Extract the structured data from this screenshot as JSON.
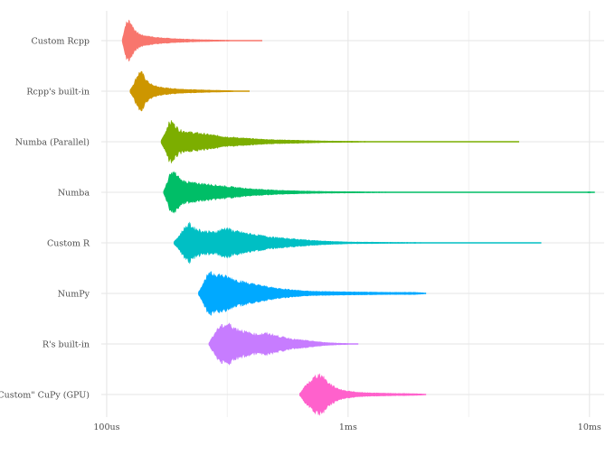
{
  "chart_data": {
    "type": "violin",
    "xscale": "log",
    "xlim_seconds": [
      9.5e-05,
      0.0115
    ],
    "x_ticks": [
      {
        "value": 0.0001,
        "label": "100us"
      },
      {
        "value": 0.001,
        "label": "1ms"
      },
      {
        "value": 0.01,
        "label": "10ms"
      }
    ],
    "x_minor_ticks": [
      0.000316,
      0.00316
    ],
    "grid": true,
    "legend": "none",
    "categories": [
      "Custom Rcpp",
      "Rcpp's built-in",
      "Numba (Parallel)",
      "Numba",
      "Custom R",
      "NumPy",
      "R's built-in",
      "\"Custom\" CuPy (GPU)"
    ],
    "series": [
      {
        "label": "Custom Rcpp",
        "color": "#F8766D",
        "min": 0.000116,
        "mode": 0.000122,
        "max": 0.00044,
        "max_width": 0.8,
        "profile": [
          [
            0.000116,
            0.05
          ],
          [
            0.000118,
            0.45
          ],
          [
            0.00012,
            0.8
          ],
          [
            0.000124,
            0.95
          ],
          [
            0.000128,
            0.7
          ],
          [
            0.000132,
            0.42
          ],
          [
            0.00014,
            0.26
          ],
          [
            0.00015,
            0.2
          ],
          [
            0.000165,
            0.14
          ],
          [
            0.00018,
            0.11
          ],
          [
            0.0002,
            0.08
          ],
          [
            0.00024,
            0.05
          ],
          [
            0.0003,
            0.025
          ],
          [
            0.00037,
            0.012
          ],
          [
            0.00044,
            0.006
          ]
        ]
      },
      {
        "label": "Rcpp's built-in",
        "color": "#CD9600",
        "min": 0.000125,
        "mode": 0.000138,
        "max": 0.00039,
        "max_width": 0.8,
        "profile": [
          [
            0.000125,
            0.05
          ],
          [
            0.00013,
            0.4
          ],
          [
            0.000134,
            0.75
          ],
          [
            0.000138,
            0.95
          ],
          [
            0.000142,
            0.75
          ],
          [
            0.000148,
            0.45
          ],
          [
            0.000155,
            0.28
          ],
          [
            0.000165,
            0.2
          ],
          [
            0.00018,
            0.14
          ],
          [
            0.0002,
            0.1
          ],
          [
            0.00023,
            0.07
          ],
          [
            0.00028,
            0.045
          ],
          [
            0.00033,
            0.025
          ],
          [
            0.00039,
            0.008
          ]
        ]
      },
      {
        "label": "Numba (Parallel)",
        "color": "#7CAE00",
        "min": 0.000168,
        "mode": 0.000185,
        "max": 0.0051,
        "max_width": 0.8,
        "profile": [
          [
            0.000168,
            0.05
          ],
          [
            0.000175,
            0.45
          ],
          [
            0.00018,
            0.85
          ],
          [
            0.000186,
            0.95
          ],
          [
            0.000192,
            0.78
          ],
          [
            0.0002,
            0.55
          ],
          [
            0.00022,
            0.45
          ],
          [
            0.00025,
            0.38
          ],
          [
            0.00028,
            0.3
          ],
          [
            0.00032,
            0.22
          ],
          [
            0.00038,
            0.16
          ],
          [
            0.00045,
            0.11
          ],
          [
            0.00055,
            0.08
          ],
          [
            0.00065,
            0.06
          ],
          [
            0.0008,
            0.035
          ],
          [
            0.0012,
            0.02
          ],
          [
            0.002,
            0.012
          ],
          [
            0.0035,
            0.008
          ],
          [
            0.0051,
            0.005
          ]
        ]
      },
      {
        "label": "Numba",
        "color": "#00BE67",
        "min": 0.000172,
        "mode": 0.000188,
        "max": 0.0105,
        "max_width": 0.8,
        "profile": [
          [
            0.000172,
            0.05
          ],
          [
            0.000178,
            0.45
          ],
          [
            0.000183,
            0.85
          ],
          [
            0.00019,
            0.95
          ],
          [
            0.000196,
            0.78
          ],
          [
            0.000205,
            0.55
          ],
          [
            0.000225,
            0.45
          ],
          [
            0.00026,
            0.38
          ],
          [
            0.0003,
            0.3
          ],
          [
            0.00035,
            0.22
          ],
          [
            0.0004,
            0.16
          ],
          [
            0.0005,
            0.1
          ],
          [
            0.00065,
            0.06
          ],
          [
            0.0008,
            0.04
          ],
          [
            0.001,
            0.03
          ],
          [
            0.0013,
            0.022
          ],
          [
            0.002,
            0.015
          ],
          [
            0.004,
            0.01
          ],
          [
            0.0095,
            0.01
          ],
          [
            0.01,
            0.03
          ],
          [
            0.0105,
            0.008
          ]
        ]
      },
      {
        "label": "Custom R",
        "color": "#00BFC4",
        "min": 0.00019,
        "mode": 0.00022,
        "max": 0.0063,
        "max_width": 0.8,
        "profile": [
          [
            0.00019,
            0.05
          ],
          [
            0.0002,
            0.35
          ],
          [
            0.00021,
            0.7
          ],
          [
            0.00022,
            0.9
          ],
          [
            0.00023,
            0.7
          ],
          [
            0.00025,
            0.55
          ],
          [
            0.00028,
            0.5
          ],
          [
            0.00031,
            0.7
          ],
          [
            0.00034,
            0.55
          ],
          [
            0.00038,
            0.45
          ],
          [
            0.00043,
            0.35
          ],
          [
            0.0005,
            0.25
          ],
          [
            0.0006,
            0.18
          ],
          [
            0.0007,
            0.12
          ],
          [
            0.0008,
            0.08
          ],
          [
            0.001,
            0.04
          ],
          [
            0.0015,
            0.025
          ],
          [
            0.003,
            0.015
          ],
          [
            0.0063,
            0.007
          ]
        ]
      },
      {
        "label": "NumPy",
        "color": "#00A9FF",
        "min": 0.00024,
        "mode": 0.00027,
        "max": 0.0021,
        "max_width": 0.8,
        "profile": [
          [
            0.00024,
            0.05
          ],
          [
            0.00025,
            0.45
          ],
          [
            0.00026,
            0.8
          ],
          [
            0.00027,
            0.95
          ],
          [
            0.00029,
            0.9
          ],
          [
            0.00031,
            0.8
          ],
          [
            0.00034,
            0.65
          ],
          [
            0.00038,
            0.5
          ],
          [
            0.00043,
            0.38
          ],
          [
            0.0005,
            0.25
          ],
          [
            0.0006,
            0.16
          ],
          [
            0.0007,
            0.1
          ],
          [
            0.0009,
            0.08
          ],
          [
            0.0012,
            0.06
          ],
          [
            0.0016,
            0.05
          ],
          [
            0.0019,
            0.05
          ],
          [
            0.0021,
            0.02
          ]
        ]
      },
      {
        "label": "R's built-in",
        "color": "#C77CFF",
        "min": 0.000265,
        "mode": 0.00031,
        "max": 0.0011,
        "max_width": 0.8,
        "profile": [
          [
            0.000265,
            0.05
          ],
          [
            0.00028,
            0.5
          ],
          [
            0.00029,
            0.75
          ],
          [
            0.0003,
            0.85
          ],
          [
            0.00032,
            0.95
          ],
          [
            0.00034,
            0.75
          ],
          [
            0.00038,
            0.55
          ],
          [
            0.00042,
            0.45
          ],
          [
            0.00046,
            0.5
          ],
          [
            0.0005,
            0.4
          ],
          [
            0.00055,
            0.3
          ],
          [
            0.0006,
            0.22
          ],
          [
            0.0007,
            0.14
          ],
          [
            0.0008,
            0.07
          ],
          [
            0.0009,
            0.04
          ],
          [
            0.0011,
            0.008
          ]
        ]
      },
      {
        "label": "\"Custom\" CuPy (GPU)",
        "color": "#FF61CC",
        "min": 0.00063,
        "mode": 0.00076,
        "max": 0.0021,
        "max_width": 0.8,
        "profile": [
          [
            0.00063,
            0.05
          ],
          [
            0.00066,
            0.35
          ],
          [
            0.0007,
            0.65
          ],
          [
            0.00073,
            0.85
          ],
          [
            0.00076,
            0.95
          ],
          [
            0.00079,
            0.82
          ],
          [
            0.00083,
            0.55
          ],
          [
            0.00088,
            0.35
          ],
          [
            0.00095,
            0.2
          ],
          [
            0.0011,
            0.1
          ],
          [
            0.0013,
            0.07
          ],
          [
            0.0016,
            0.05
          ],
          [
            0.0019,
            0.04
          ],
          [
            0.0021,
            0.015
          ]
        ]
      }
    ]
  }
}
